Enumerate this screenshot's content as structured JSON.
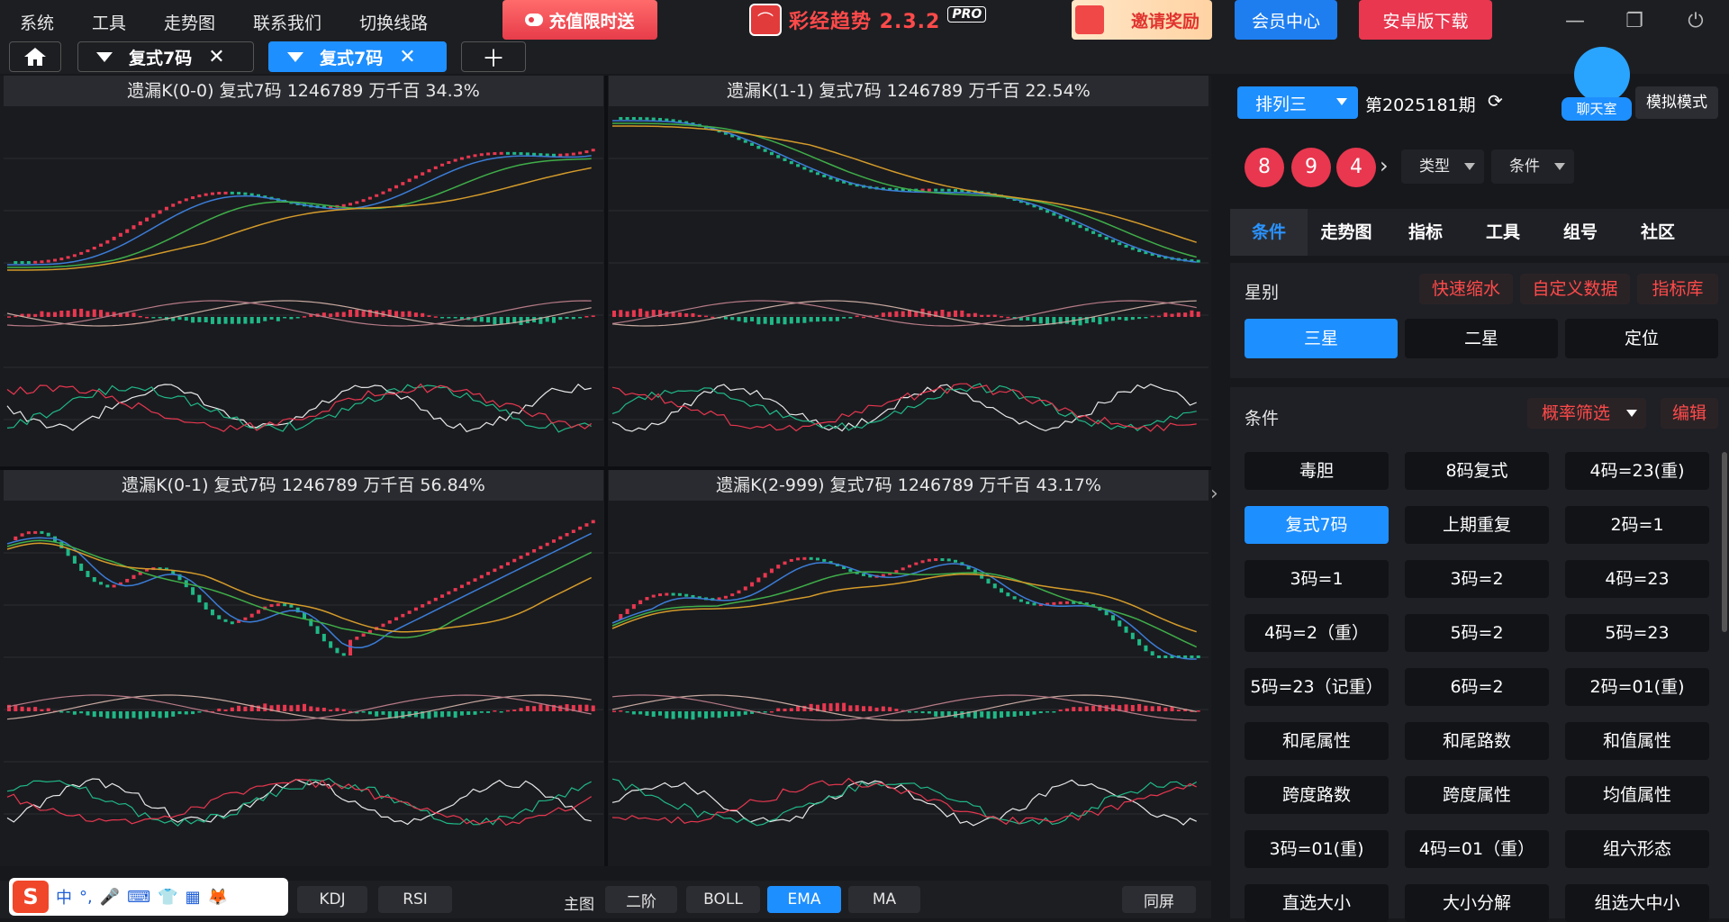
{
  "menu": [
    "系统",
    "工具",
    "走势图",
    "联系我们",
    "切换线路"
  ],
  "promo_label": "充值限时送",
  "brand": {
    "name": "彩经趋势 2.3.2",
    "badge": "PRO"
  },
  "invite_label": "邀请奖励",
  "vip_label": "会员中心",
  "android_label": "安卓版下载",
  "tabs": [
    {
      "label": "复式7码",
      "active": false
    },
    {
      "label": "复式7码",
      "active": true
    }
  ],
  "panels": [
    {
      "title": "遗漏K(0-0)  复式7码  1246789  万千百  34.3%",
      "trend": "up"
    },
    {
      "title": "遗漏K(1-1)  复式7码  1246789  万千百  22.54%",
      "trend": "down"
    },
    {
      "title": "遗漏K(0-1)  复式7码  1246789  万千百  56.84%",
      "trend": "vshape"
    },
    {
      "title": "遗漏K(2-999)  复式7码  1246789  万千百  43.17%",
      "trend": "hump"
    }
  ],
  "bottom": {
    "buttons_left": [
      "KDJ",
      "RSI"
    ],
    "main_label": "主图",
    "buttons_main": [
      {
        "label": "二阶",
        "active": false
      },
      {
        "label": "BOLL",
        "active": false
      },
      {
        "label": "EMA",
        "active": true
      },
      {
        "label": "MA",
        "active": false
      }
    ],
    "same_screen": "同屏"
  },
  "ime": {
    "logo": "S",
    "items": [
      "中",
      "°,",
      "🎤",
      "⌨",
      "👕",
      "▦",
      "🦊"
    ]
  },
  "right": {
    "lottery_select": "排列三",
    "period": "第2025181期",
    "chat_label": "聊天室",
    "sim_mode": "模拟模式",
    "balls": [
      "8",
      "9",
      "4"
    ],
    "dropdowns": [
      "类型",
      "条件"
    ],
    "tabs": [
      {
        "label": "条件",
        "active": true
      },
      {
        "label": "走势图",
        "active": false
      },
      {
        "label": "指标",
        "active": false
      },
      {
        "label": "工具",
        "active": false
      },
      {
        "label": "组号",
        "active": false
      },
      {
        "label": "社区",
        "active": false
      }
    ],
    "star": {
      "label": "星别",
      "actions": [
        "快速缩水",
        "自定义数据",
        "指标库"
      ],
      "options": [
        {
          "label": "三星",
          "active": true
        },
        {
          "label": "二星",
          "active": false
        },
        {
          "label": "定位",
          "active": false
        }
      ]
    },
    "cond": {
      "label": "条件",
      "filter": "概率筛选",
      "edit": "编辑",
      "items": [
        {
          "label": "毒胆",
          "active": false
        },
        {
          "label": "8码复式",
          "active": false
        },
        {
          "label": "4码=23(重)",
          "active": false
        },
        {
          "label": "复式7码",
          "active": true
        },
        {
          "label": "上期重复",
          "active": false
        },
        {
          "label": "2码=1",
          "active": false
        },
        {
          "label": "3码=1",
          "active": false
        },
        {
          "label": "3码=2",
          "active": false
        },
        {
          "label": "4码=23",
          "active": false
        },
        {
          "label": "4码=2（重）",
          "active": false
        },
        {
          "label": "5码=2",
          "active": false
        },
        {
          "label": "5码=23",
          "active": false
        },
        {
          "label": "5码=23（记重）",
          "active": false
        },
        {
          "label": "6码=2",
          "active": false
        },
        {
          "label": "2码=01(重)",
          "active": false
        },
        {
          "label": "和尾属性",
          "active": false
        },
        {
          "label": "和尾路数",
          "active": false
        },
        {
          "label": "和值属性",
          "active": false
        },
        {
          "label": "跨度路数",
          "active": false
        },
        {
          "label": "跨度属性",
          "active": false
        },
        {
          "label": "均值属性",
          "active": false
        },
        {
          "label": "3码=01(重)",
          "active": false
        },
        {
          "label": "4码=01（重）",
          "active": false
        },
        {
          "label": "组六形态",
          "active": false
        },
        {
          "label": "直选大小",
          "active": false
        },
        {
          "label": "大小分解",
          "active": false
        },
        {
          "label": "组选大中小",
          "active": false
        }
      ]
    }
  },
  "colors": {
    "accent": "#1e8fff",
    "red": "#e8374f",
    "up": "#e8374f",
    "down": "#1fb886",
    "ma1": "#3b7dd8",
    "ma2": "#3fae49",
    "ma3": "#d49b2a"
  }
}
